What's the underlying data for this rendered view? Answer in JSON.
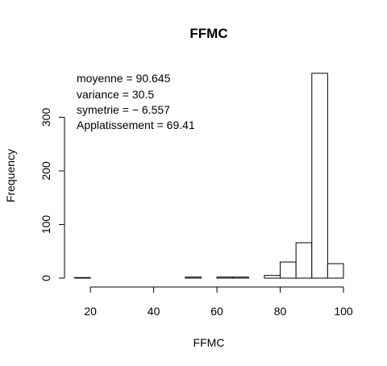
{
  "chart_data": {
    "type": "bar",
    "title": "FFMC",
    "xlabel": "FFMC",
    "ylabel": "Frequency",
    "xlim": [
      15,
      100
    ],
    "ylim": [
      0,
      380
    ],
    "x_ticks": [
      20,
      40,
      60,
      80,
      100
    ],
    "y_ticks": [
      0,
      100,
      200,
      300
    ],
    "bins": [
      {
        "x0": 15,
        "x1": 20,
        "count": 1
      },
      {
        "x0": 20,
        "x1": 25,
        "count": 0
      },
      {
        "x0": 25,
        "x1": 30,
        "count": 0
      },
      {
        "x0": 30,
        "x1": 35,
        "count": 0
      },
      {
        "x0": 35,
        "x1": 40,
        "count": 0
      },
      {
        "x0": 40,
        "x1": 45,
        "count": 0
      },
      {
        "x0": 45,
        "x1": 50,
        "count": 0
      },
      {
        "x0": 50,
        "x1": 55,
        "count": 2
      },
      {
        "x0": 55,
        "x1": 60,
        "count": 0
      },
      {
        "x0": 60,
        "x1": 65,
        "count": 2
      },
      {
        "x0": 65,
        "x1": 70,
        "count": 2
      },
      {
        "x0": 70,
        "x1": 75,
        "count": 0
      },
      {
        "x0": 75,
        "x1": 80,
        "count": 5
      },
      {
        "x0": 80,
        "x1": 85,
        "count": 30
      },
      {
        "x0": 85,
        "x1": 90,
        "count": 66
      },
      {
        "x0": 90,
        "x1": 95,
        "count": 382
      },
      {
        "x0": 95,
        "x1": 100,
        "count": 27
      }
    ],
    "annotations": [
      "moyenne = 90.645",
      "variance = 30.5",
      "symetrie = − 6.557",
      "Applatissement = 69.41"
    ]
  }
}
